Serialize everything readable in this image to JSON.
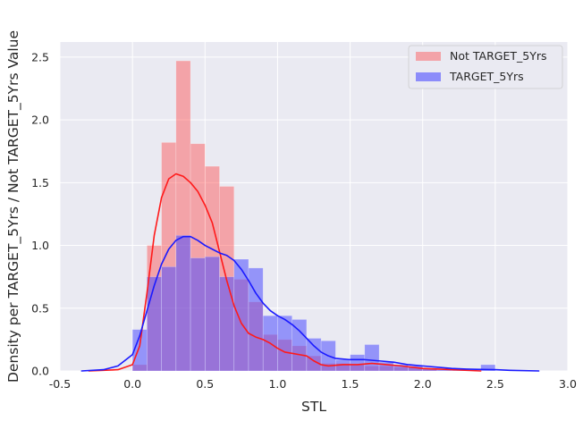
{
  "chart_data": {
    "type": "histogram",
    "xlabel": "STL",
    "ylabel": "Density per TARGET_5Yrs / Not TARGET_5Yrs Value",
    "xlim": [
      -0.5,
      3.0
    ],
    "ylim": [
      0,
      2.62
    ],
    "xticks": [
      "-0.5",
      "0.0",
      "0.5",
      "1.0",
      "1.5",
      "2.0",
      "2.5",
      "3.0"
    ],
    "yticks": [
      "0.0",
      "0.5",
      "1.0",
      "1.5",
      "2.0",
      "2.5"
    ],
    "grid": true,
    "legend_position": "top-right",
    "bin_edges": [
      0.0,
      0.1,
      0.2,
      0.3,
      0.4,
      0.5,
      0.6,
      0.7,
      0.8,
      0.9,
      1.0,
      1.1,
      1.2,
      1.3,
      1.4,
      1.5,
      1.6,
      1.7,
      1.8,
      1.9,
      2.0,
      2.1,
      2.2,
      2.3,
      2.4,
      2.5
    ],
    "series": [
      {
        "name": "Not TARGET_5Yrs",
        "bar_color": "#f08080",
        "line_color": "#ff1a1a",
        "values": [
          0.05,
          1.0,
          1.82,
          2.47,
          1.81,
          1.63,
          1.47,
          0.73,
          0.55,
          0.29,
          0.25,
          0.2,
          0.12,
          0.06,
          0.06,
          0.05,
          0.04,
          0.04,
          0.03,
          0.03,
          0.02,
          0.0,
          0.0,
          0.0,
          0.0
        ],
        "kde": [
          [
            -0.3,
            0.0
          ],
          [
            -0.1,
            0.01
          ],
          [
            0.0,
            0.05
          ],
          [
            0.05,
            0.2
          ],
          [
            0.1,
            0.62
          ],
          [
            0.15,
            1.08
          ],
          [
            0.2,
            1.38
          ],
          [
            0.25,
            1.53
          ],
          [
            0.3,
            1.57
          ],
          [
            0.35,
            1.55
          ],
          [
            0.4,
            1.5
          ],
          [
            0.45,
            1.43
          ],
          [
            0.5,
            1.32
          ],
          [
            0.55,
            1.18
          ],
          [
            0.6,
            0.95
          ],
          [
            0.65,
            0.72
          ],
          [
            0.7,
            0.52
          ],
          [
            0.75,
            0.38
          ],
          [
            0.8,
            0.3
          ],
          [
            0.85,
            0.27
          ],
          [
            0.9,
            0.25
          ],
          [
            0.95,
            0.22
          ],
          [
            1.0,
            0.18
          ],
          [
            1.05,
            0.15
          ],
          [
            1.1,
            0.14
          ],
          [
            1.15,
            0.13
          ],
          [
            1.2,
            0.12
          ],
          [
            1.25,
            0.08
          ],
          [
            1.3,
            0.05
          ],
          [
            1.35,
            0.04
          ],
          [
            1.45,
            0.05
          ],
          [
            1.55,
            0.05
          ],
          [
            1.65,
            0.06
          ],
          [
            1.75,
            0.05
          ],
          [
            1.85,
            0.04
          ],
          [
            2.0,
            0.02
          ],
          [
            2.2,
            0.01
          ],
          [
            2.4,
            0.0
          ]
        ]
      },
      {
        "name": "TARGET_5Yrs",
        "bar_color": "#8080ff",
        "line_color": "#1a1aff",
        "values": [
          0.33,
          0.75,
          0.83,
          1.08,
          0.9,
          0.91,
          0.75,
          0.89,
          0.82,
          0.44,
          0.44,
          0.41,
          0.26,
          0.24,
          0.09,
          0.13,
          0.21,
          0.07,
          0.05,
          0.04,
          0.02,
          0.01,
          0.01,
          0.0,
          0.05
        ],
        "kde": [
          [
            -0.35,
            0.0
          ],
          [
            -0.2,
            0.01
          ],
          [
            -0.1,
            0.04
          ],
          [
            0.0,
            0.13
          ],
          [
            0.05,
            0.28
          ],
          [
            0.1,
            0.48
          ],
          [
            0.15,
            0.68
          ],
          [
            0.2,
            0.85
          ],
          [
            0.25,
            0.97
          ],
          [
            0.3,
            1.04
          ],
          [
            0.35,
            1.07
          ],
          [
            0.4,
            1.07
          ],
          [
            0.45,
            1.04
          ],
          [
            0.5,
            1.0
          ],
          [
            0.55,
            0.97
          ],
          [
            0.6,
            0.94
          ],
          [
            0.65,
            0.92
          ],
          [
            0.7,
            0.88
          ],
          [
            0.75,
            0.81
          ],
          [
            0.8,
            0.72
          ],
          [
            0.85,
            0.62
          ],
          [
            0.9,
            0.54
          ],
          [
            0.95,
            0.48
          ],
          [
            1.0,
            0.44
          ],
          [
            1.05,
            0.41
          ],
          [
            1.1,
            0.37
          ],
          [
            1.15,
            0.32
          ],
          [
            1.2,
            0.26
          ],
          [
            1.25,
            0.2
          ],
          [
            1.3,
            0.15
          ],
          [
            1.35,
            0.12
          ],
          [
            1.4,
            0.1
          ],
          [
            1.5,
            0.09
          ],
          [
            1.6,
            0.09
          ],
          [
            1.7,
            0.08
          ],
          [
            1.8,
            0.07
          ],
          [
            1.9,
            0.05
          ],
          [
            2.0,
            0.04
          ],
          [
            2.1,
            0.03
          ],
          [
            2.2,
            0.02
          ],
          [
            2.3,
            0.015
          ],
          [
            2.4,
            0.012
          ],
          [
            2.5,
            0.01
          ],
          [
            2.6,
            0.005
          ],
          [
            2.8,
            0.0
          ]
        ]
      }
    ]
  }
}
